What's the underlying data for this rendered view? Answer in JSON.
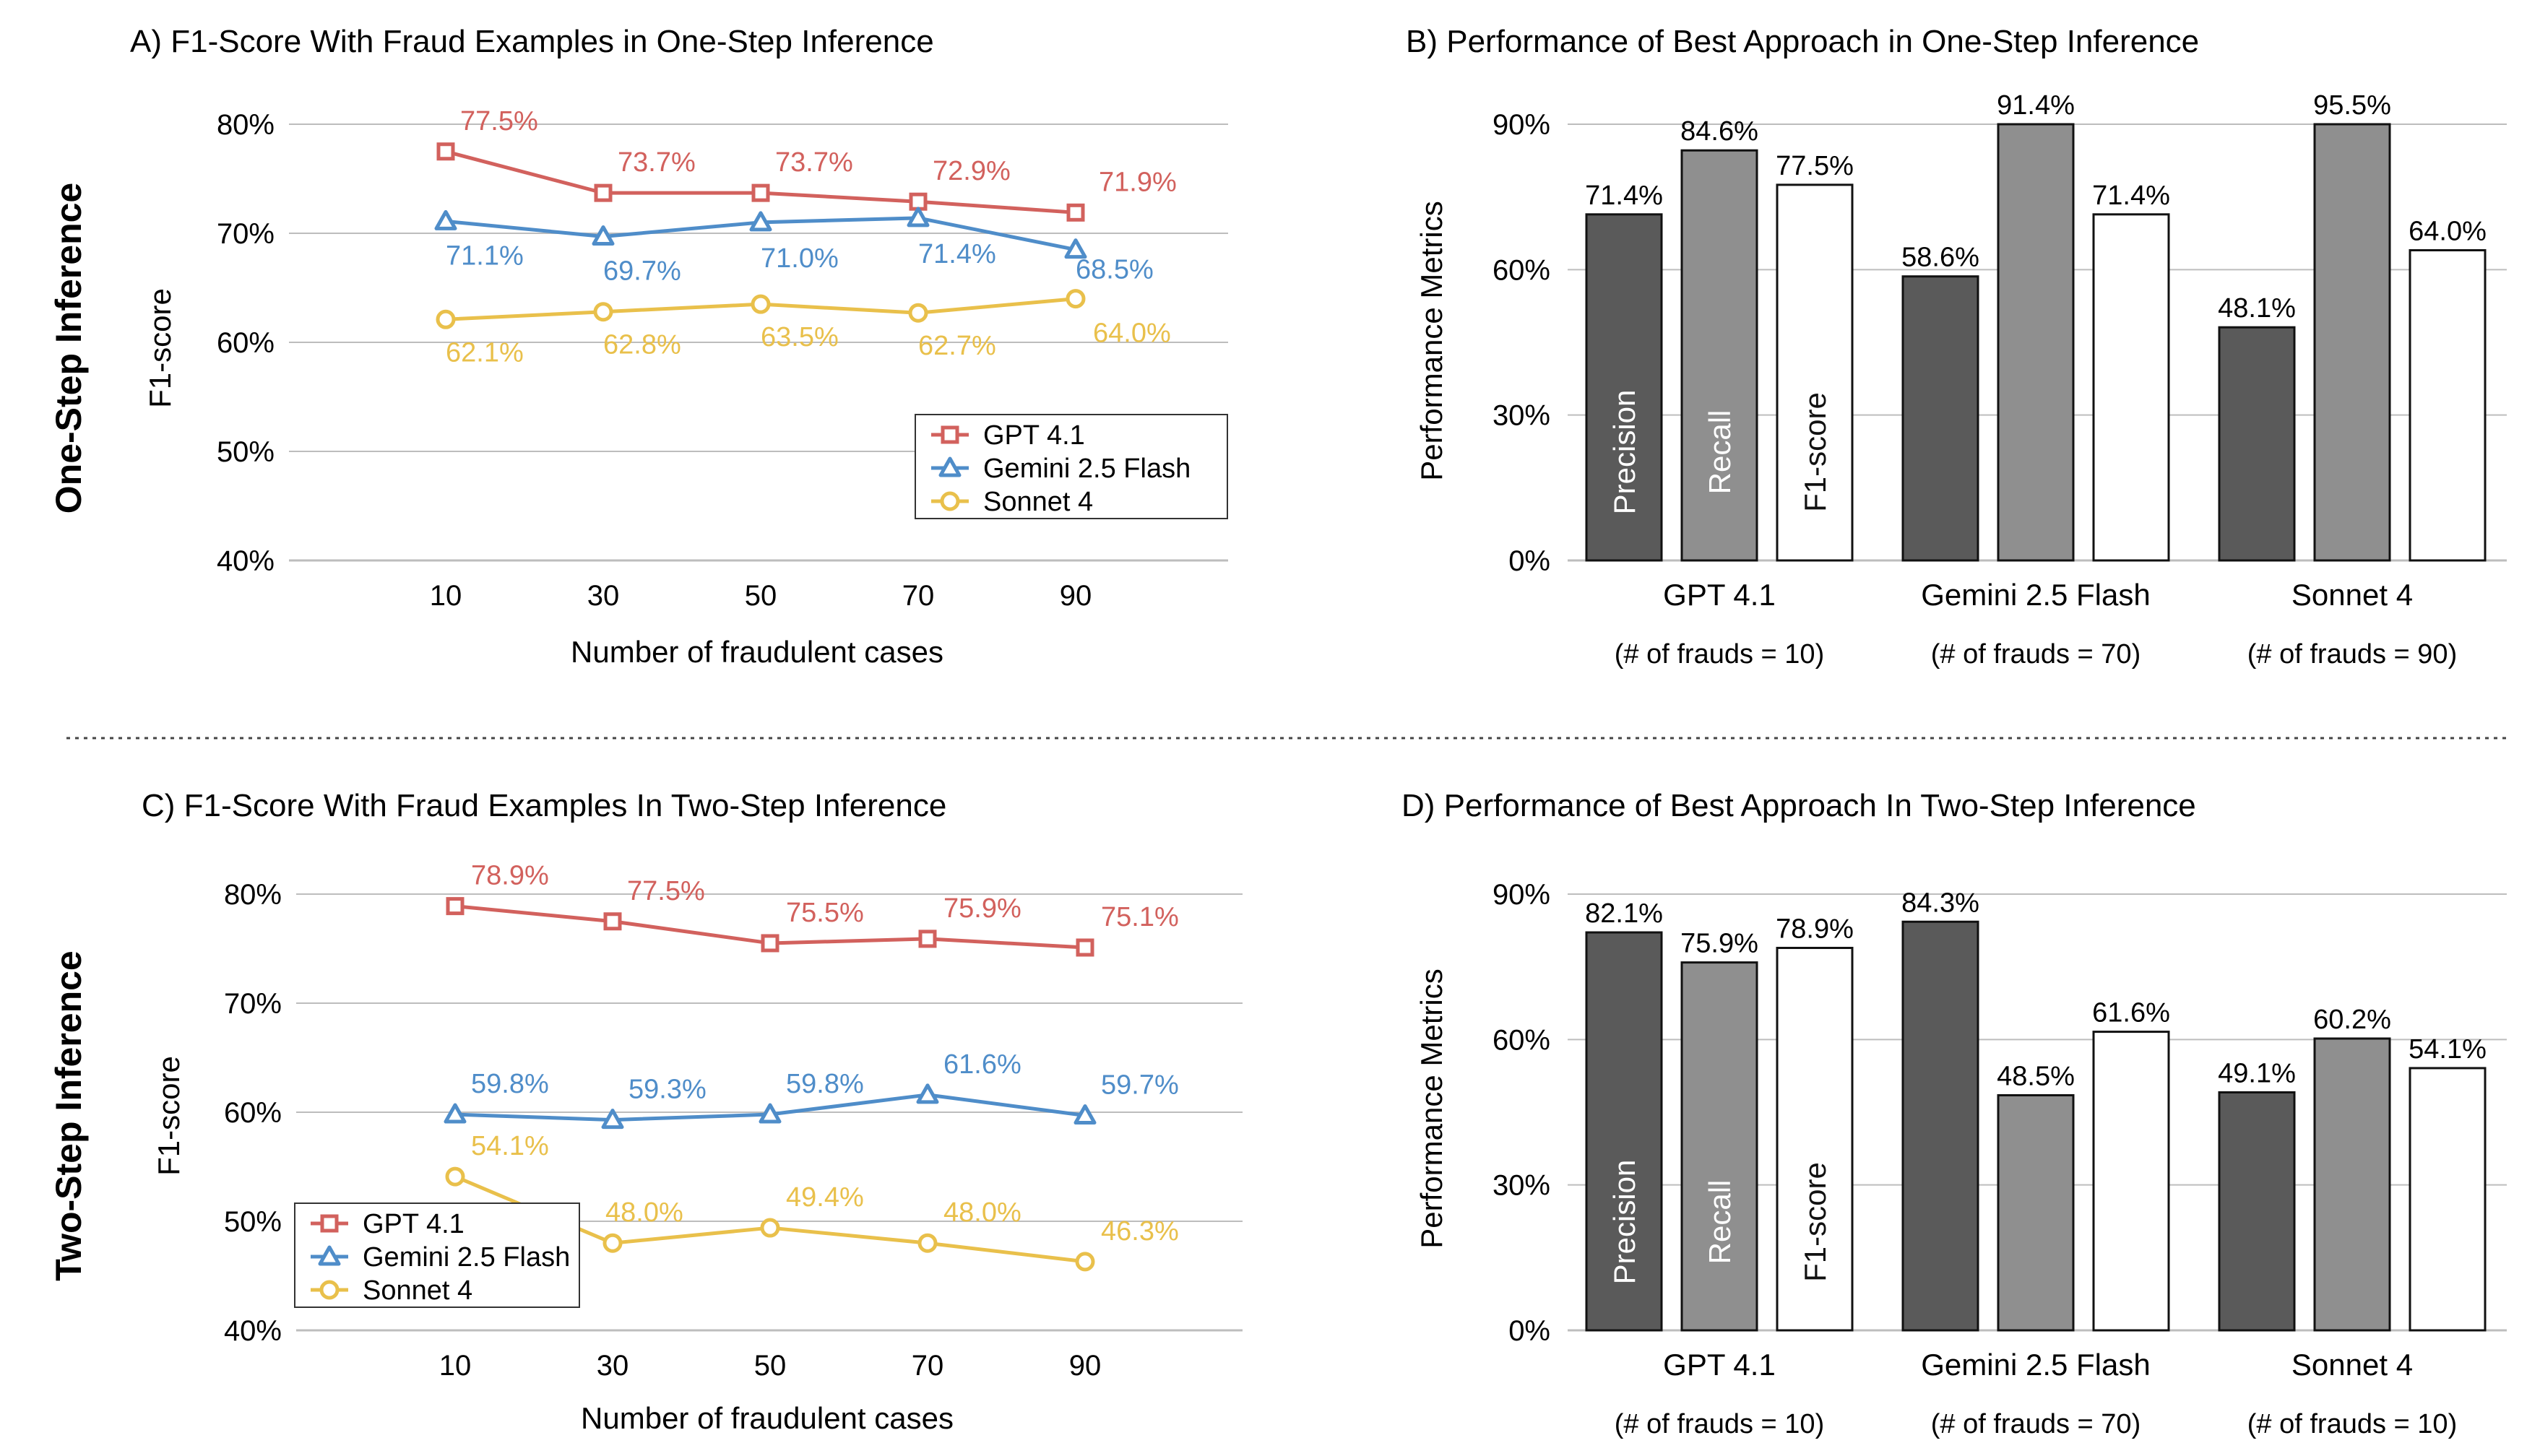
{
  "rows": [
    {
      "label": "One-Step Inference"
    },
    {
      "label": "Two-Step Inference"
    }
  ],
  "colors": {
    "GPT 4.1": "#d2615d",
    "Gemini 2.5 Flash": "#4f8dc9",
    "Sonnet 4": "#e9c04b",
    "Precision": "#5a5a5a",
    "Recall": "#8f8f8f",
    "F1-score": "#ffffff",
    "grid": "#bdbdbd"
  },
  "chart_data": [
    {
      "panel": "A",
      "type": "line",
      "title": "A) F1-Score With Fraud Examples in One-Step Inference",
      "xlabel": "Number of fraudulent cases",
      "ylabel": "F1-score",
      "x": [
        10,
        30,
        50,
        70,
        90
      ],
      "ylim": [
        40,
        80
      ],
      "yticks": [
        "40%",
        "50%",
        "60%",
        "70%",
        "80%"
      ],
      "grid": "horizontal",
      "legend": "bottom-right",
      "series": [
        {
          "name": "GPT 4.1",
          "marker": "square",
          "values": [
            77.5,
            73.7,
            73.7,
            72.9,
            71.9
          ],
          "labels": [
            "77.5%",
            "73.7%",
            "73.7%",
            "72.9%",
            "71.9%"
          ]
        },
        {
          "name": "Gemini 2.5 Flash",
          "marker": "triangle",
          "values": [
            71.1,
            69.7,
            71.0,
            71.4,
            68.5
          ],
          "labels": [
            "71.1%",
            "69.7%",
            "71.0%",
            "71.4%",
            "68.5%"
          ]
        },
        {
          "name": "Sonnet 4",
          "marker": "circle",
          "values": [
            62.1,
            62.8,
            63.5,
            62.7,
            64.0
          ],
          "labels": [
            "62.1%",
            "62.8%",
            "63.5%",
            "62.7%",
            "64.0%"
          ]
        }
      ]
    },
    {
      "panel": "B",
      "type": "bar",
      "title": "B) Performance of Best Approach in One-Step Inference",
      "ylabel": "Performance Metrics",
      "ylim": [
        0,
        90
      ],
      "yticks": [
        "0%",
        "30%",
        "60%",
        "90%"
      ],
      "categories": [
        "GPT 4.1",
        "Gemini 2.5 Flash",
        "Sonnet 4"
      ],
      "notes": [
        "(# of  frauds = 10)",
        "(# of frauds = 70)",
        "(# of frauds = 90)"
      ],
      "series": [
        {
          "name": "Precision",
          "values": [
            71.4,
            58.6,
            48.1
          ],
          "labels": [
            "71.4%",
            "58.6%",
            "48.1%"
          ]
        },
        {
          "name": "Recall",
          "values": [
            84.6,
            91.4,
            95.5
          ],
          "labels": [
            "84.6%",
            "91.4%",
            "95.5%"
          ]
        },
        {
          "name": "F1-score",
          "values": [
            77.5,
            71.4,
            64.0
          ],
          "labels": [
            "77.5%",
            "71.4%",
            "64.0%"
          ]
        }
      ]
    },
    {
      "panel": "C",
      "type": "line",
      "title": "C) F1-Score With Fraud Examples In Two-Step Inference",
      "xlabel": "Number of fraudulent cases",
      "ylabel": "F1-score",
      "x": [
        10,
        30,
        50,
        70,
        90
      ],
      "ylim": [
        40,
        80
      ],
      "yticks": [
        "40%",
        "50%",
        "60%",
        "70%",
        "80%"
      ],
      "grid": "horizontal",
      "legend": "bottom-left",
      "series": [
        {
          "name": "GPT 4.1",
          "marker": "square",
          "values": [
            78.9,
            77.5,
            75.5,
            75.9,
            75.1
          ],
          "labels": [
            "78.9%",
            "77.5%",
            "75.5%",
            "75.9%",
            "75.1%"
          ]
        },
        {
          "name": "Gemini 2.5 Flash",
          "marker": "triangle",
          "values": [
            59.8,
            59.3,
            59.8,
            61.6,
            59.7
          ],
          "labels": [
            "59.8%",
            "59.3%",
            "59.8%",
            "61.6%",
            "59.7%"
          ]
        },
        {
          "name": "Sonnet 4",
          "marker": "circle",
          "values": [
            54.1,
            48.0,
            49.4,
            48.0,
            46.3
          ],
          "labels": [
            "54.1%",
            "48.0%",
            "49.4%",
            "48.0%",
            "46.3%"
          ]
        }
      ]
    },
    {
      "panel": "D",
      "type": "bar",
      "title": "D) Performance of Best Approach In Two-Step Inference",
      "ylabel": "Performance Metrics",
      "ylim": [
        0,
        90
      ],
      "yticks": [
        "0%",
        "30%",
        "60%",
        "90%"
      ],
      "categories": [
        "GPT 4.1",
        "Gemini 2.5 Flash",
        "Sonnet 4"
      ],
      "notes": [
        "(# of frauds = 10)",
        "(# of frauds = 70)",
        "(# of frauds = 10)"
      ],
      "series": [
        {
          "name": "Precision",
          "values": [
            82.1,
            84.3,
            49.1
          ],
          "labels": [
            "82.1%",
            "84.3%",
            "49.1%"
          ]
        },
        {
          "name": "Recall",
          "values": [
            75.9,
            48.5,
            60.2
          ],
          "labels": [
            "75.9%",
            "48.5%",
            "60.2%"
          ]
        },
        {
          "name": "F1-score",
          "values": [
            78.9,
            61.6,
            54.1
          ],
          "labels": [
            "78.9%",
            "61.6%",
            "54.1%"
          ]
        }
      ]
    }
  ]
}
